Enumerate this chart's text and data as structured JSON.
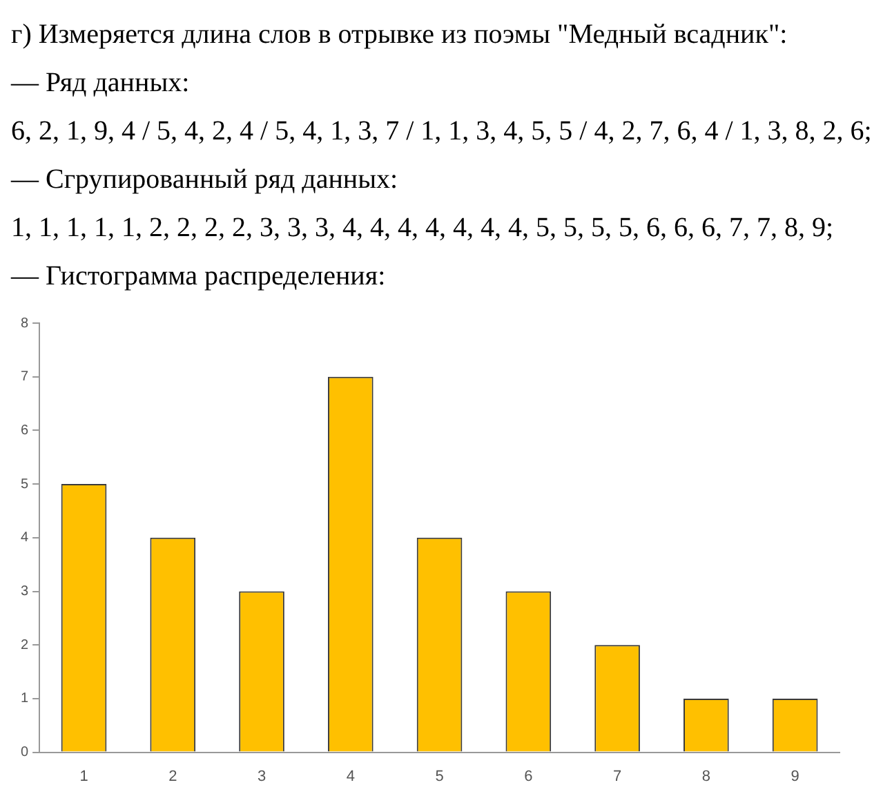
{
  "chart_data": {
    "type": "bar",
    "title": "г) Измеряется длина слов в отрывке из поэмы \"Медный всадник\":",
    "annotations": [
      "— Ряд данных:",
      "6, 2, 1, 9, 4 / 5, 4, 2, 4 / 5, 4, 1, 3, 7 / 1, 1, 3, 4, 5, 5 / 4, 2, 7, 6, 4 / 1, 3, 8, 2, 6;",
      "— Сгрупированный ряд данных:",
      "1, 1, 1, 1, 1, 2, 2, 2, 2, 3, 3, 3, 4, 4, 4, 4, 4, 4, 4, 5, 5, 5, 5, 6, 6, 6, 7, 7, 8, 9;",
      "— Гистограмма распределения:"
    ],
    "categories": [
      "1",
      "2",
      "3",
      "4",
      "5",
      "6",
      "7",
      "8",
      "9"
    ],
    "values": [
      5,
      4,
      3,
      7,
      4,
      3,
      2,
      1,
      1
    ],
    "color": "#ffc000",
    "ylim": [
      0,
      8
    ],
    "yticks": [
      0,
      1,
      2,
      3,
      4,
      5,
      6,
      7,
      8
    ]
  }
}
